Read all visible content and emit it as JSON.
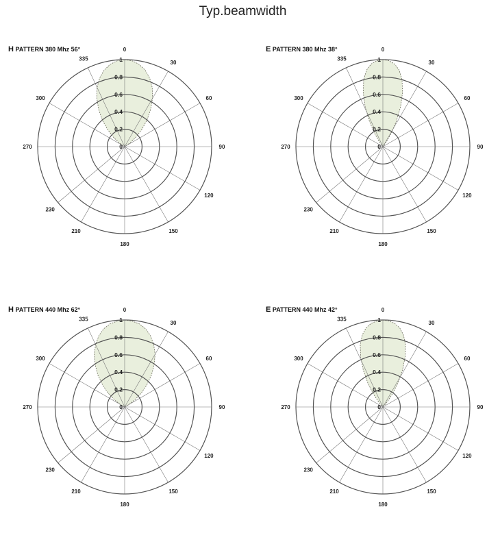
{
  "page": {
    "title": "Typ.beamwidth"
  },
  "chart_data": [
    {
      "type": "polar",
      "title": {
        "prefix": "H",
        "text": "PATTERN 380 Mhz 56°"
      },
      "angle_labels": [
        "0",
        "30",
        "60",
        "90",
        "120",
        "150",
        "180",
        "210",
        "230",
        "270",
        "300",
        "335"
      ],
      "radial_ticks": [
        "0",
        "0.2",
        "0.4",
        "0.6",
        "0.8",
        "1"
      ],
      "rlim": [
        0,
        1
      ],
      "grid": true,
      "fill_color": "#e9efdd",
      "series": [
        {
          "values": [
            [
              0,
              1.0
            ],
            [
              5,
              0.99
            ],
            [
              10,
              0.96
            ],
            [
              15,
              0.91
            ],
            [
              20,
              0.84
            ],
            [
              25,
              0.75
            ],
            [
              30,
              0.64
            ],
            [
              35,
              0.52
            ],
            [
              40,
              0.4
            ],
            [
              45,
              0.28
            ],
            [
              50,
              0.17
            ],
            [
              55,
              0.08
            ],
            [
              60,
              0.02
            ],
            [
              300,
              0.02
            ],
            [
              305,
              0.08
            ],
            [
              310,
              0.17
            ],
            [
              315,
              0.28
            ],
            [
              320,
              0.4
            ],
            [
              325,
              0.52
            ],
            [
              330,
              0.64
            ],
            [
              335,
              0.75
            ],
            [
              340,
              0.84
            ],
            [
              345,
              0.91
            ],
            [
              350,
              0.96
            ],
            [
              355,
              0.99
            ]
          ]
        }
      ]
    },
    {
      "type": "polar",
      "title": {
        "prefix": "E",
        "text": "PATTERN 380 Mhz 38°"
      },
      "angle_labels": [
        "0",
        "30",
        "60",
        "90",
        "120",
        "150",
        "180",
        "210",
        "230",
        "270",
        "300",
        "335"
      ],
      "radial_ticks": [
        "0",
        "0.2",
        "0.4",
        "0.6",
        "0.8",
        "1"
      ],
      "rlim": [
        0,
        1
      ],
      "grid": true,
      "fill_color": "#e9efdd",
      "series": [
        {
          "values": [
            [
              0,
              1.0
            ],
            [
              4,
              0.99
            ],
            [
              8,
              0.96
            ],
            [
              12,
              0.9
            ],
            [
              16,
              0.8
            ],
            [
              20,
              0.66
            ],
            [
              24,
              0.5
            ],
            [
              28,
              0.33
            ],
            [
              32,
              0.18
            ],
            [
              36,
              0.07
            ],
            [
              40,
              0.01
            ],
            [
              320,
              0.01
            ],
            [
              324,
              0.07
            ],
            [
              328,
              0.18
            ],
            [
              332,
              0.33
            ],
            [
              336,
              0.5
            ],
            [
              340,
              0.66
            ],
            [
              344,
              0.8
            ],
            [
              348,
              0.9
            ],
            [
              352,
              0.96
            ],
            [
              356,
              0.99
            ]
          ]
        }
      ]
    },
    {
      "type": "polar",
      "title": {
        "prefix": "H",
        "text": "PATTERN 440 Mhz 62°"
      },
      "angle_labels": [
        "0",
        "30",
        "60",
        "90",
        "120",
        "150",
        "180",
        "210",
        "230",
        "270",
        "300",
        "335"
      ],
      "radial_ticks": [
        "0",
        "0.2",
        "0.4",
        "0.6",
        "0.8",
        "1"
      ],
      "rlim": [
        0,
        1
      ],
      "grid": true,
      "fill_color": "#e9efdd",
      "series": [
        {
          "values": [
            [
              0,
              1.0
            ],
            [
              5,
              0.99
            ],
            [
              10,
              0.97
            ],
            [
              15,
              0.93
            ],
            [
              20,
              0.87
            ],
            [
              25,
              0.79
            ],
            [
              30,
              0.7
            ],
            [
              35,
              0.59
            ],
            [
              40,
              0.48
            ],
            [
              45,
              0.36
            ],
            [
              50,
              0.25
            ],
            [
              55,
              0.14
            ],
            [
              60,
              0.06
            ],
            [
              65,
              0.01
            ],
            [
              295,
              0.01
            ],
            [
              300,
              0.06
            ],
            [
              305,
              0.14
            ],
            [
              310,
              0.25
            ],
            [
              315,
              0.36
            ],
            [
              320,
              0.48
            ],
            [
              325,
              0.59
            ],
            [
              330,
              0.7
            ],
            [
              335,
              0.79
            ],
            [
              340,
              0.87
            ],
            [
              345,
              0.93
            ],
            [
              350,
              0.97
            ],
            [
              355,
              0.99
            ]
          ]
        }
      ]
    },
    {
      "type": "polar",
      "title": {
        "prefix": "E",
        "text": "PATTERN 440 Mhz 42°"
      },
      "angle_labels": [
        "0",
        "30",
        "60",
        "90",
        "120",
        "150",
        "180",
        "210",
        "230",
        "270",
        "300",
        "335"
      ],
      "radial_ticks": [
        "0",
        "0.2",
        "0.4",
        "0.6",
        "0.8",
        "1"
      ],
      "rlim": [
        0,
        1
      ],
      "grid": true,
      "fill_color": "#e9efdd",
      "series": [
        {
          "values": [
            [
              0,
              1.0
            ],
            [
              4,
              0.99
            ],
            [
              8,
              0.97
            ],
            [
              12,
              0.93
            ],
            [
              16,
              0.86
            ],
            [
              20,
              0.76
            ],
            [
              24,
              0.63
            ],
            [
              28,
              0.48
            ],
            [
              32,
              0.33
            ],
            [
              36,
              0.19
            ],
            [
              40,
              0.08
            ],
            [
              44,
              0.02
            ],
            [
              316,
              0.02
            ],
            [
              320,
              0.08
            ],
            [
              324,
              0.19
            ],
            [
              328,
              0.33
            ],
            [
              332,
              0.48
            ],
            [
              336,
              0.63
            ],
            [
              340,
              0.76
            ],
            [
              344,
              0.86
            ],
            [
              348,
              0.93
            ],
            [
              352,
              0.97
            ],
            [
              356,
              0.99
            ]
          ]
        }
      ]
    }
  ]
}
